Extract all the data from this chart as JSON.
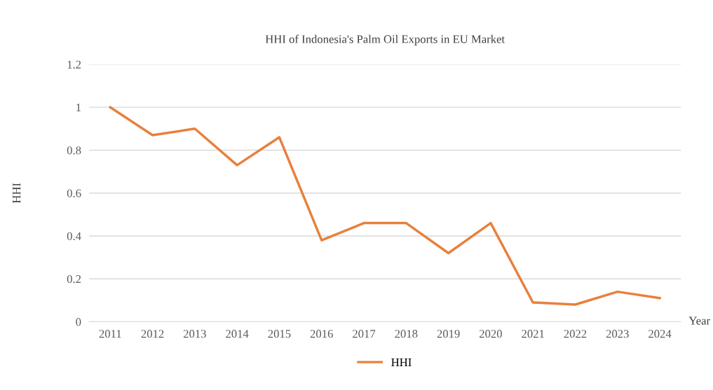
{
  "chart_data": {
    "type": "line",
    "title": "HHI of Indonesia's Palm Oil Exports in EU Market",
    "xlabel": "Year",
    "ylabel": "HHI",
    "categories": [
      "2011",
      "2012",
      "2013",
      "2014",
      "2015",
      "2016",
      "2017",
      "2018",
      "2019",
      "2020",
      "2021",
      "2022",
      "2023",
      "2024"
    ],
    "series": [
      {
        "name": "HHI",
        "color": "#e8803d",
        "values": [
          1.0,
          0.87,
          0.9,
          0.73,
          0.86,
          0.38,
          0.46,
          0.46,
          0.32,
          0.46,
          0.09,
          0.08,
          0.14,
          0.11
        ]
      }
    ],
    "ylim": [
      0,
      1.2
    ],
    "yticks": [
      0,
      0.2,
      0.4,
      0.6,
      0.8,
      1,
      1.2
    ],
    "grid": "y",
    "legend": "bottom",
    "marker": "none",
    "line_style": "solid"
  }
}
